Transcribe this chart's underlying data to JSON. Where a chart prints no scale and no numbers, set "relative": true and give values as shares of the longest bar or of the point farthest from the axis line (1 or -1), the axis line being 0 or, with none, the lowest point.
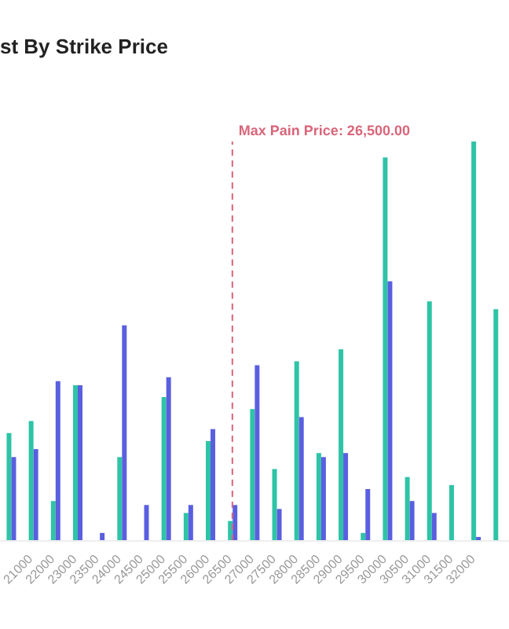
{
  "chart_data": {
    "type": "bar",
    "title": "st By Strike Price",
    "relative": true,
    "categories": [
      null,
      "21000",
      "22000",
      "23000",
      "23500",
      "24000",
      "24500",
      "25000",
      "25500",
      "26000",
      "26500",
      "27000",
      "27500",
      "28000",
      "28500",
      "29000",
      "29500",
      "30000",
      "30500",
      "31000",
      "31500",
      "32000",
      null
    ],
    "series": [
      {
        "color": "#2ec4a6",
        "values": [
          0.27,
          0.3,
          0.1,
          0.39,
          0,
          0.21,
          0,
          0.36,
          0.07,
          0.25,
          0.05,
          0.33,
          0.18,
          0.45,
          0.22,
          0.48,
          0.02,
          0.96,
          0.16,
          0.6,
          0.14,
          1,
          0.58
        ]
      },
      {
        "color": "#5a5fe0",
        "values": [
          0.21,
          0.23,
          0.4,
          0.39,
          0.02,
          0.54,
          0.09,
          0.41,
          0.09,
          0.28,
          0.09,
          0.44,
          0.08,
          0.31,
          0.21,
          0.22,
          0.13,
          0.65,
          0.1,
          0.07,
          null,
          0.01,
          null
        ]
      }
    ],
    "ref_lines": [
      {
        "axis": "x",
        "value": "26500",
        "label": "Max Pain Price: 26,500.00",
        "color": "#d9667a",
        "line_style": "dashed"
      }
    ],
    "grid": false,
    "legend": false
  }
}
